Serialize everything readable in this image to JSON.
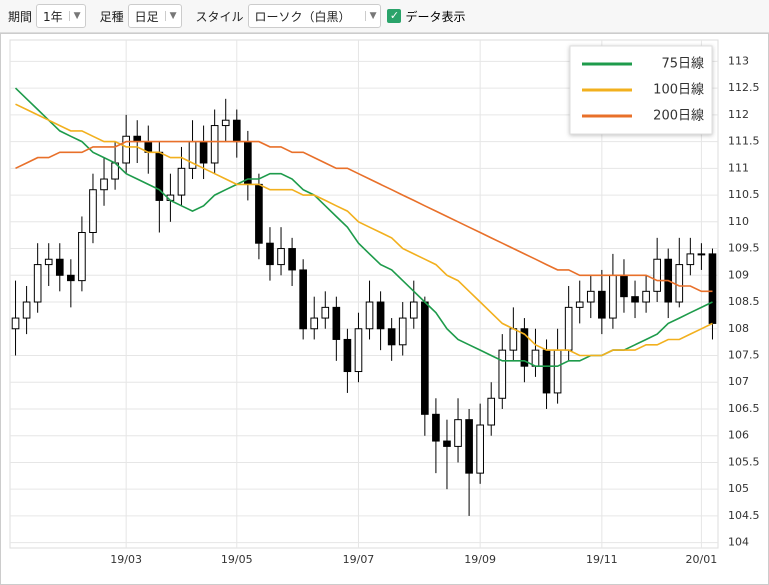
{
  "toolbar": {
    "period_label": "期間",
    "period": "1年",
    "bar_label": "足種",
    "bar": "日足",
    "style_label": "スタイル",
    "style": "ローソク（白黒）",
    "data_toggle": "データ表示"
  },
  "chart_data": {
    "type": "candlestick",
    "categories": [
      null,
      null,
      null,
      null,
      null,
      null,
      null,
      null,
      null,
      null,
      "19/03",
      null,
      null,
      null,
      null,
      null,
      null,
      null,
      null,
      null,
      "19/05",
      null,
      null,
      null,
      null,
      null,
      null,
      null,
      null,
      null,
      null,
      "19/07",
      null,
      null,
      null,
      null,
      null,
      null,
      null,
      null,
      null,
      null,
      "19/09",
      null,
      null,
      null,
      null,
      null,
      null,
      null,
      null,
      null,
      null,
      "19/11",
      null,
      null,
      null,
      null,
      null,
      null,
      null,
      null,
      "20/01",
      null
    ],
    "open": [
      108.0,
      108.2,
      108.5,
      109.2,
      109.3,
      109.0,
      108.9,
      109.8,
      110.6,
      110.8,
      111.1,
      111.6,
      111.5,
      111.3,
      110.4,
      110.5,
      111.0,
      111.5,
      111.1,
      111.8,
      111.9,
      111.5,
      110.7,
      109.6,
      109.2,
      109.5,
      109.1,
      108.0,
      108.2,
      108.4,
      107.8,
      107.2,
      108.0,
      108.5,
      108.0,
      107.7,
      108.2,
      108.5,
      106.4,
      105.9,
      105.8,
      106.3,
      105.3,
      106.2,
      106.7,
      107.6,
      108.0,
      107.3,
      107.6,
      106.8,
      107.6,
      108.4,
      108.5,
      108.7,
      108.2,
      109.0,
      108.6,
      108.5,
      108.7,
      109.3,
      108.5,
      109.2,
      109.4,
      109.4
    ],
    "high": [
      108.9,
      108.8,
      109.6,
      109.6,
      109.6,
      109.3,
      110.1,
      110.9,
      111.2,
      111.5,
      112.0,
      111.9,
      111.8,
      111.5,
      110.9,
      111.4,
      111.9,
      111.8,
      112.1,
      112.3,
      112.1,
      111.7,
      110.9,
      109.9,
      109.9,
      109.7,
      109.3,
      108.6,
      108.7,
      108.6,
      108.0,
      108.3,
      108.9,
      108.7,
      108.2,
      108.5,
      108.9,
      108.6,
      106.7,
      106.3,
      106.7,
      106.5,
      106.6,
      107.0,
      107.9,
      108.4,
      108.2,
      108.0,
      107.8,
      108.0,
      108.8,
      108.9,
      109.0,
      109.1,
      109.4,
      109.3,
      108.9,
      109.0,
      109.7,
      109.5,
      109.7,
      109.7,
      109.6,
      109.5
    ],
    "low": [
      107.5,
      107.9,
      108.3,
      108.8,
      108.7,
      108.4,
      108.7,
      109.6,
      110.3,
      110.6,
      110.9,
      111.1,
      110.9,
      109.8,
      110.0,
      110.3,
      110.8,
      110.8,
      110.9,
      111.5,
      111.2,
      110.4,
      109.3,
      108.9,
      109.0,
      108.8,
      107.8,
      107.8,
      108.0,
      107.4,
      106.8,
      107.0,
      107.8,
      107.6,
      107.4,
      107.5,
      108.0,
      106.0,
      105.3,
      105.0,
      105.5,
      104.5,
      105.1,
      106.0,
      106.5,
      107.4,
      107.0,
      107.1,
      106.5,
      106.6,
      107.4,
      108.1,
      108.2,
      107.9,
      108.0,
      108.3,
      108.2,
      108.3,
      108.5,
      108.2,
      108.4,
      109.0,
      109.1,
      107.8
    ],
    "close": [
      108.2,
      108.5,
      109.2,
      109.3,
      109.0,
      108.9,
      109.8,
      110.6,
      110.8,
      111.1,
      111.6,
      111.5,
      111.3,
      110.4,
      110.5,
      111.0,
      111.5,
      111.1,
      111.8,
      111.9,
      111.5,
      110.7,
      109.6,
      109.2,
      109.5,
      109.1,
      108.0,
      108.2,
      108.4,
      107.8,
      107.2,
      108.0,
      108.5,
      108.0,
      107.7,
      108.2,
      108.5,
      106.4,
      105.9,
      105.8,
      106.3,
      105.3,
      106.2,
      106.7,
      107.6,
      108.0,
      107.3,
      107.6,
      106.8,
      107.6,
      108.4,
      108.5,
      108.7,
      108.2,
      109.0,
      108.6,
      108.5,
      108.7,
      109.3,
      108.5,
      109.2,
      109.4,
      109.4,
      108.1
    ],
    "series": [
      {
        "name": "75日線",
        "color": "#1e9b4b",
        "values": [
          112.5,
          112.3,
          112.1,
          111.9,
          111.7,
          111.6,
          111.5,
          111.3,
          111.2,
          111.1,
          110.9,
          110.8,
          110.7,
          110.6,
          110.4,
          110.3,
          110.2,
          110.3,
          110.5,
          110.6,
          110.7,
          110.8,
          110.8,
          110.9,
          110.9,
          110.8,
          110.6,
          110.5,
          110.3,
          110.1,
          109.9,
          109.6,
          109.4,
          109.2,
          109.1,
          108.9,
          108.7,
          108.5,
          108.3,
          108.0,
          107.8,
          107.7,
          107.6,
          107.5,
          107.4,
          107.4,
          107.4,
          107.3,
          107.3,
          107.3,
          107.4,
          107.4,
          107.5,
          107.5,
          107.6,
          107.6,
          107.7,
          107.8,
          107.9,
          108.1,
          108.2,
          108.3,
          108.4,
          108.5
        ]
      },
      {
        "name": "100日線",
        "color": "#f2b01e",
        "values": [
          112.2,
          112.1,
          112.0,
          111.9,
          111.8,
          111.7,
          111.7,
          111.6,
          111.5,
          111.5,
          111.4,
          111.4,
          111.3,
          111.3,
          111.2,
          111.2,
          111.1,
          111.0,
          110.9,
          110.8,
          110.7,
          110.7,
          110.7,
          110.6,
          110.6,
          110.6,
          110.5,
          110.5,
          110.4,
          110.3,
          110.2,
          110.0,
          109.9,
          109.8,
          109.7,
          109.5,
          109.4,
          109.3,
          109.2,
          109.0,
          108.9,
          108.7,
          108.5,
          108.3,
          108.1,
          108.0,
          107.9,
          107.7,
          107.6,
          107.6,
          107.6,
          107.5,
          107.5,
          107.5,
          107.6,
          107.6,
          107.6,
          107.7,
          107.7,
          107.8,
          107.8,
          107.9,
          108.0,
          108.1
        ]
      },
      {
        "name": "200日線",
        "color": "#e8702a",
        "values": [
          111.0,
          111.1,
          111.2,
          111.2,
          111.3,
          111.3,
          111.3,
          111.4,
          111.4,
          111.4,
          111.5,
          111.5,
          111.5,
          111.5,
          111.5,
          111.5,
          111.5,
          111.5,
          111.5,
          111.5,
          111.5,
          111.5,
          111.5,
          111.4,
          111.4,
          111.3,
          111.3,
          111.2,
          111.1,
          111.0,
          111.0,
          110.9,
          110.8,
          110.7,
          110.6,
          110.5,
          110.4,
          110.3,
          110.2,
          110.1,
          110.0,
          109.9,
          109.8,
          109.7,
          109.6,
          109.5,
          109.4,
          109.3,
          109.2,
          109.1,
          109.1,
          109.0,
          109.0,
          109.0,
          109.0,
          109.0,
          109.0,
          109.0,
          108.9,
          108.9,
          108.8,
          108.8,
          108.7,
          108.7
        ]
      }
    ],
    "ylim": [
      103.9,
      113.4
    ],
    "yticks": [
      104,
      104.5,
      105,
      105.5,
      106,
      106.5,
      107,
      107.5,
      108,
      108.5,
      109,
      109.5,
      110,
      110.5,
      111,
      111.5,
      112,
      112.5,
      113
    ],
    "grid": true,
    "legend": "top-right",
    "up_color": "#ffffff",
    "down_color": "#000000"
  }
}
